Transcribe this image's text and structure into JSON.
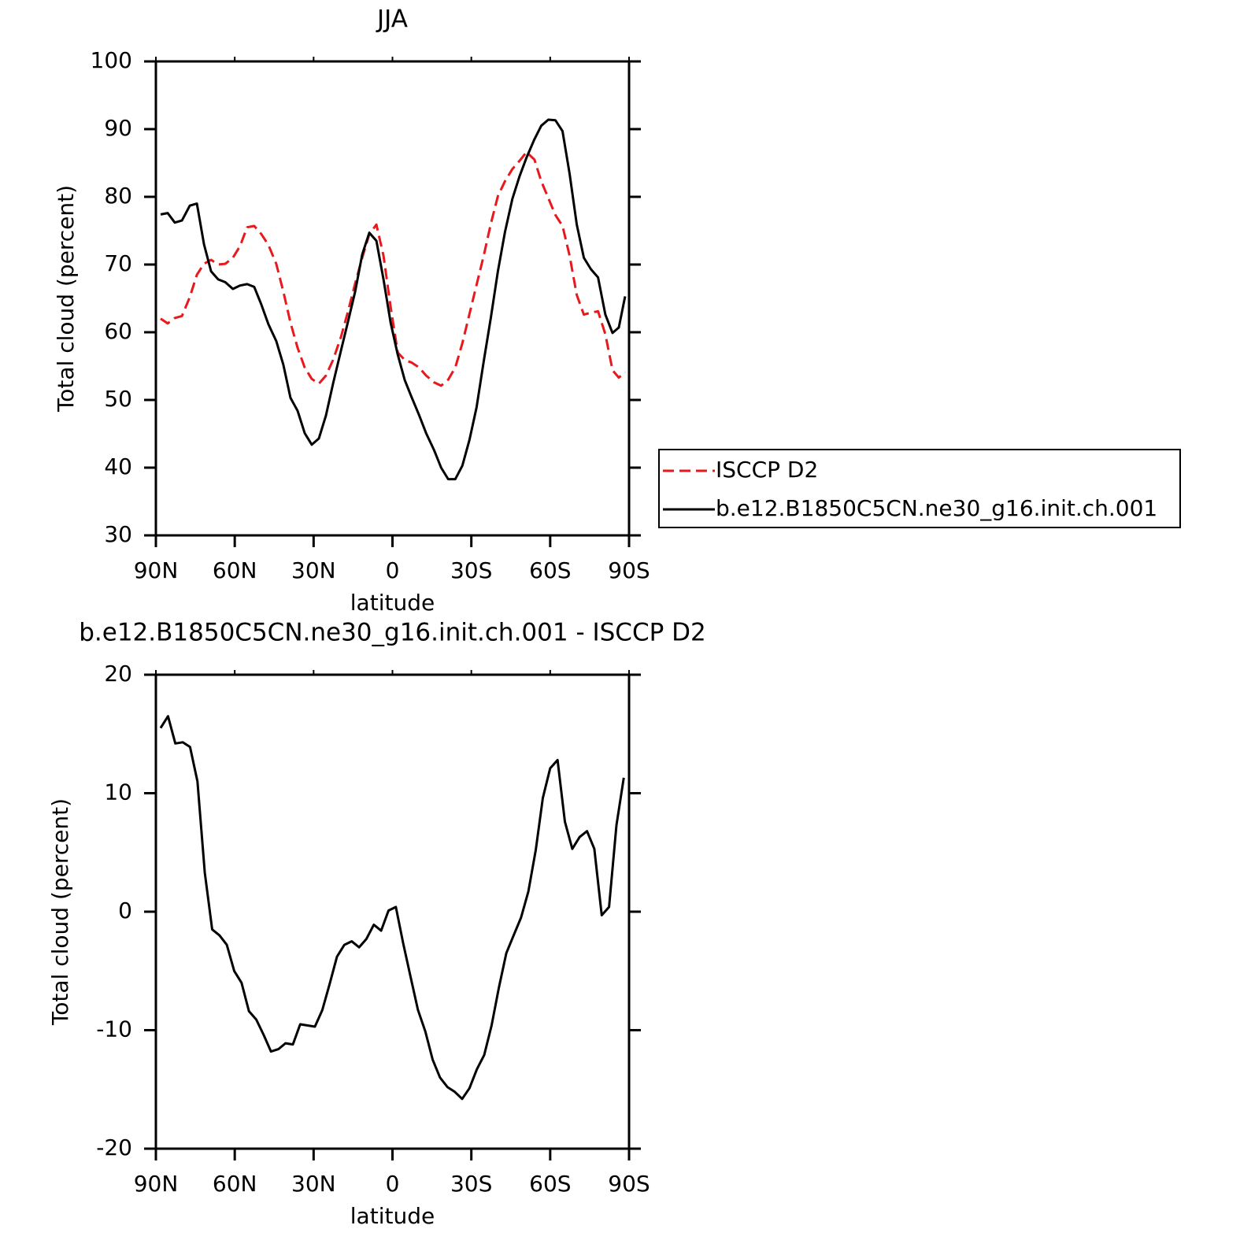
{
  "chart_data": [
    {
      "type": "line",
      "title": "JJA",
      "xlabel": "latitude",
      "ylabel": "Total cloud (percent)",
      "x": [
        88.2,
        85.5,
        82.8,
        80.1,
        77.1,
        74.4,
        71.7,
        69.0,
        66.3,
        63.6,
        60.7,
        58.0,
        55.3,
        52.6,
        49.9,
        47.2,
        44.2,
        41.5,
        38.8,
        36.1,
        33.4,
        30.7,
        28.0,
        25.3,
        22.6,
        19.6,
        16.9,
        14.2,
        11.5,
        8.8,
        6.1,
        3.4,
        0.7,
        -2.0,
        -4.7,
        -7.4,
        -10.1,
        -12.8,
        -15.8,
        -18.5,
        -21.2,
        -23.9,
        -26.6,
        -29.3,
        -32.0,
        -34.7,
        -37.4,
        -40.1,
        -42.8,
        -45.6,
        -48.3,
        -51.0,
        -54.0,
        -56.6,
        -59.3,
        -62.0,
        -64.7,
        -67.4,
        -70.1,
        -72.8,
        -75.5,
        -78.2,
        -81.0,
        -83.7,
        -86.1,
        -88.5
      ],
      "series": [
        {
          "name": "ISCCP D2",
          "color": "#e8191c",
          "style": "dashed",
          "values": [
            62.0,
            61.3,
            62.1,
            62.4,
            65.2,
            68.5,
            70.1,
            70.7,
            70.0,
            70.1,
            71.0,
            72.7,
            75.5,
            75.7,
            74.5,
            72.9,
            70.1,
            66.0,
            61.4,
            57.7,
            54.8,
            53.1,
            52.4,
            53.6,
            55.9,
            59.3,
            63.1,
            67.2,
            71.0,
            74.5,
            75.9,
            71.3,
            63.7,
            57.0,
            55.9,
            55.5,
            54.8,
            53.6,
            52.6,
            52.1,
            53.0,
            54.8,
            58.4,
            62.7,
            67.0,
            71.3,
            76.0,
            80.1,
            82.3,
            84.1,
            85.3,
            86.6,
            85.5,
            82.3,
            79.8,
            77.3,
            75.7,
            71.3,
            65.5,
            62.6,
            62.9,
            63.1,
            59.7,
            54.4,
            53.3,
            54.1
          ]
        },
        {
          "name": "b.e12.B1850C5CN.ne30_g16.init.ch.001",
          "color": "#000000",
          "style": "solid",
          "values": [
            77.4,
            77.6,
            76.2,
            76.5,
            78.7,
            79.0,
            73.0,
            69.0,
            67.8,
            67.4,
            66.4,
            66.9,
            67.1,
            66.7,
            64.1,
            61.2,
            58.7,
            55.2,
            50.3,
            48.4,
            45.1,
            43.4,
            44.3,
            47.7,
            52.4,
            57.3,
            61.6,
            66.0,
            71.5,
            74.7,
            73.5,
            67.8,
            61.4,
            56.7,
            52.9,
            50.3,
            47.8,
            45.1,
            42.6,
            40.0,
            38.3,
            38.3,
            40.3,
            44.1,
            48.9,
            55.7,
            62.1,
            69.0,
            74.8,
            79.7,
            83.0,
            85.8,
            88.5,
            90.5,
            91.4,
            91.3,
            89.7,
            83.4,
            75.9,
            71.0,
            69.3,
            68.1,
            62.6,
            59.9,
            60.7,
            65.3
          ]
        }
      ],
      "xlim": [
        90,
        -90
      ],
      "xticks": [
        {
          "value": 90,
          "label": "90N"
        },
        {
          "value": 60,
          "label": "60N"
        },
        {
          "value": 30,
          "label": "30N"
        },
        0,
        {
          "value": -30,
          "label": "30S"
        },
        {
          "value": -60,
          "label": "60S"
        },
        {
          "value": -90,
          "label": "90S"
        }
      ],
      "ylim": [
        30,
        100
      ],
      "yticks": [
        30,
        40,
        50,
        60,
        70,
        80,
        90,
        100
      ],
      "legend": "right"
    },
    {
      "type": "line",
      "title": "b.e12.B1850C5CN.ne30_g16.init.ch.001 - ISCCP D2",
      "xlabel": "latitude",
      "ylabel": "Total cloud (percent)",
      "x": [
        88.2,
        85.4,
        82.6,
        79.8,
        77.0,
        74.2,
        71.4,
        68.6,
        65.8,
        63.0,
        60.2,
        57.4,
        54.6,
        51.8,
        49.0,
        46.2,
        43.4,
        40.7,
        37.9,
        35.1,
        32.3,
        29.5,
        26.7,
        23.9,
        21.1,
        18.3,
        15.5,
        12.7,
        9.9,
        7.1,
        4.3,
        1.5,
        -1.3,
        -4.1,
        -6.9,
        -9.7,
        -12.5,
        -15.3,
        -18.1,
        -20.9,
        -23.7,
        -26.5,
        -29.3,
        -32.1,
        -34.9,
        -37.7,
        -40.5,
        -43.3,
        -46.1,
        -48.9,
        -51.7,
        -54.5,
        -57.2,
        -60.0,
        -62.8,
        -65.6,
        -68.4,
        -71.2,
        -74.0,
        -76.8,
        -79.6,
        -82.4,
        -85.2,
        -88.0
      ],
      "color": "#000000",
      "values": [
        15.5,
        16.5,
        14.2,
        14.3,
        13.9,
        11.0,
        3.3,
        -1.5,
        -2.0,
        -2.8,
        -5.0,
        -6.0,
        -8.4,
        -9.1,
        -10.4,
        -11.8,
        -11.6,
        -11.1,
        -11.2,
        -9.5,
        -9.6,
        -9.7,
        -8.3,
        -6.1,
        -3.8,
        -2.8,
        -2.5,
        -3.0,
        -2.3,
        -1.1,
        -1.6,
        0.1,
        0.4,
        -2.7,
        -5.5,
        -8.3,
        -10.1,
        -12.5,
        -14.0,
        -14.8,
        -15.2,
        -15.8,
        -14.9,
        -13.3,
        -12.1,
        -9.6,
        -6.4,
        -3.5,
        -2.0,
        -0.5,
        1.7,
        5.2,
        9.6,
        12.1,
        12.8,
        7.6,
        5.3,
        6.3,
        6.8,
        5.3,
        -0.3,
        0.4,
        7.3,
        11.3
      ],
      "xlim": [
        90,
        -90
      ],
      "xticks": [
        {
          "value": 90,
          "label": "90N"
        },
        {
          "value": 60,
          "label": "60N"
        },
        {
          "value": 30,
          "label": "30N"
        },
        0,
        {
          "value": -30,
          "label": "30S"
        },
        {
          "value": -60,
          "label": "60S"
        },
        {
          "value": -90,
          "label": "90S"
        }
      ],
      "ylim": [
        -20,
        20
      ],
      "yticks": [
        -20,
        -10,
        0,
        10,
        20
      ]
    }
  ]
}
